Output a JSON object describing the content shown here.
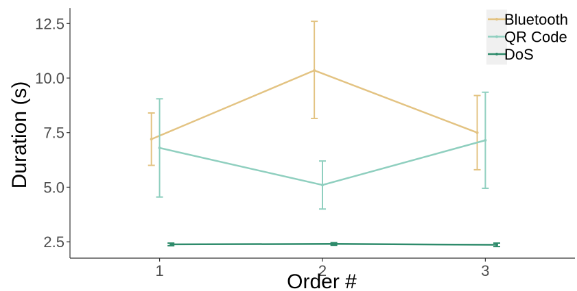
{
  "chart_data": {
    "type": "line",
    "title": "",
    "xlabel": "Order #",
    "ylabel": "Duration (s)",
    "x": [
      1,
      2,
      3
    ],
    "x_tick_labels": [
      "1",
      "2",
      "3"
    ],
    "y_tick_labels": [
      "2.5",
      "5.0",
      "7.5",
      "10.0",
      "12.5"
    ],
    "y_ticks": [
      2.5,
      5.0,
      7.5,
      10.0,
      12.5
    ],
    "xlim": [
      0.45,
      3.55
    ],
    "ylim": [
      1.75,
      13.2
    ],
    "grid": false,
    "legend_position": "top-right",
    "series": [
      {
        "name": "Bluetooth",
        "color": "#E3C382",
        "values": [
          7.2,
          10.35,
          7.5
        ],
        "err_low": [
          6.0,
          8.15,
          5.8
        ],
        "err_high": [
          8.4,
          12.6,
          9.2
        ],
        "x_offset": -0.05
      },
      {
        "name": "QR Code",
        "color": "#8FCFBF",
        "values": [
          6.8,
          5.1,
          7.15
        ],
        "err_low": [
          4.55,
          4.0,
          4.95
        ],
        "err_high": [
          9.05,
          6.2,
          9.35
        ],
        "x_offset": 0.0
      },
      {
        "name": "DoS",
        "color": "#2E8B6B",
        "values": [
          2.38,
          2.4,
          2.36
        ],
        "err_low": [
          2.32,
          2.34,
          2.28
        ],
        "err_high": [
          2.44,
          2.46,
          2.44
        ],
        "x_offset": 0.07
      }
    ]
  }
}
